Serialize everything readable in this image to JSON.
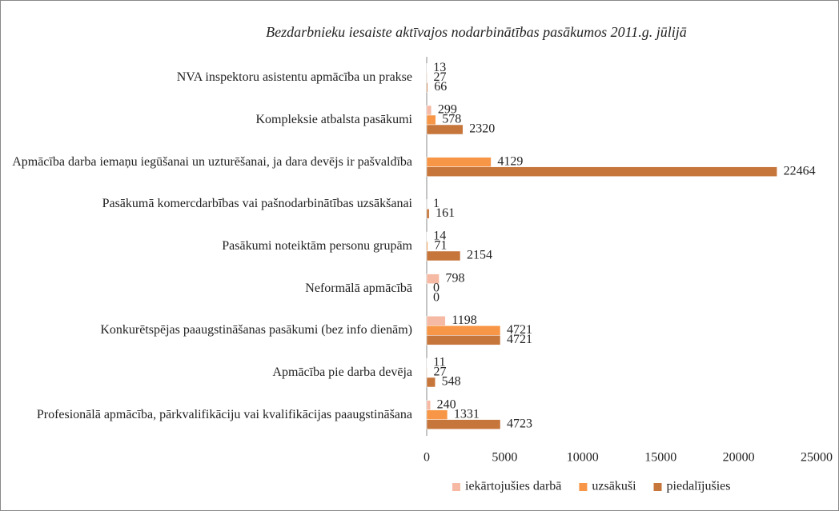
{
  "chart_data": {
    "type": "bar",
    "orientation": "horizontal",
    "title": "Bezdarbnieku iesaiste aktīvajos nodarbinātības pasākumos 2011.g. jūlijā",
    "categories": [
      "NVA inspektoru asistentu apmācība un prakse",
      "Kompleksie atbalsta pasākumi",
      "Apmācība darba iemaņu iegūšanai un uzturēšanai, ja dara devējs ir pašvaldība",
      "Pasākumā komercdarbības vai pašnodarbinātības uzsākšanai",
      "Pasākumi noteiktām personu grupām",
      "Neformālā apmācībā",
      "Konkurētspējas paaugstināšanas pasākumi (bez info dienām)",
      "Apmācība pie darba devēja",
      "Profesionālā apmācība, pārkvalifikāciju vai kvalifikācijas paaugstināšana"
    ],
    "series": [
      {
        "name": "iekārtojušies darbā",
        "color": "#f5b9a4",
        "values": [
          13,
          299,
          null,
          null,
          14,
          798,
          1198,
          11,
          240
        ]
      },
      {
        "name": "uzsākuši",
        "color": "#f79646",
        "values": [
          27,
          578,
          4129,
          1,
          71,
          0,
          4721,
          27,
          1331
        ]
      },
      {
        "name": "piedalījušies",
        "color": "#c6753b",
        "values": [
          66,
          2320,
          22464,
          161,
          2154,
          0,
          4721,
          548,
          4723
        ]
      }
    ],
    "xlim": [
      0,
      25000
    ],
    "xticks": [
      0,
      5000,
      10000,
      15000,
      20000,
      25000
    ],
    "legend": "bottom"
  }
}
